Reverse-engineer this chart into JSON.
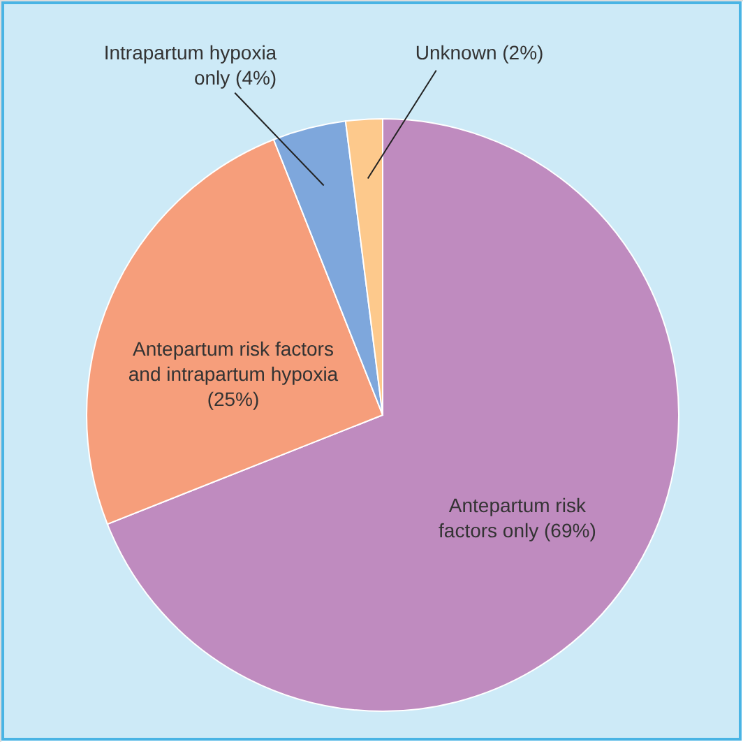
{
  "chart_data": {
    "type": "pie",
    "categories": [
      "Antepartum risk\nfactors only (69%)",
      "Antepartum risk factors\nand intrapartum hypoxia\n(25%)",
      "Intrapartum hypoxia\nonly (4%)",
      "Unknown (2%)"
    ],
    "values": [
      69,
      25,
      4,
      2
    ],
    "colors": [
      "#bf8bbf",
      "#f69e7b",
      "#7ea7dc",
      "#fdc98c"
    ]
  }
}
